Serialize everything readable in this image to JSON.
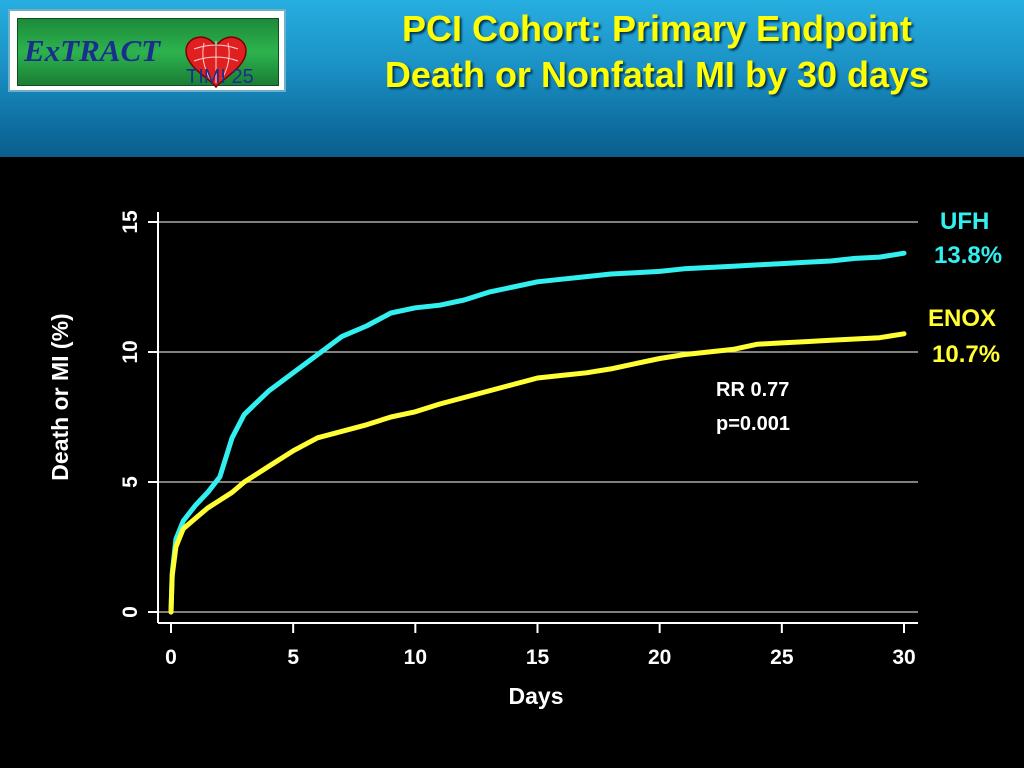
{
  "header": {
    "title_line1": "PCI Cohort: Primary Endpoint",
    "title_line2": "Death or Nonfatal MI by 30 days",
    "logo": {
      "wordmark": "ExTRACT",
      "sub": "TIMI 25",
      "colors": {
        "frame": "#ffffff",
        "panel": "#2db34e",
        "text": "#1a2f8c",
        "heart": "#e02020"
      }
    }
  },
  "colors": {
    "ufh": "#33f0f0",
    "enox": "#ffff33",
    "title": "#ffff00",
    "axis": "#ffffff"
  },
  "chart_data": {
    "type": "line",
    "title": "",
    "xlabel": "Days",
    "ylabel": "Death or MI (%)",
    "xlim": [
      0,
      30
    ],
    "ylim": [
      0,
      15
    ],
    "x_ticks": [
      0,
      5,
      10,
      15,
      20,
      25,
      30
    ],
    "y_ticks": [
      0,
      5,
      10,
      15
    ],
    "grid": "horizontal",
    "series": [
      {
        "name": "UFH",
        "end_label": "13.8%",
        "color": "#33f0f0",
        "x": [
          0,
          0.05,
          0.2,
          0.5,
          1,
          1.5,
          2,
          2.5,
          3,
          4,
          5,
          6,
          7,
          8,
          9,
          10,
          11,
          12,
          13,
          14,
          15,
          16,
          17,
          18,
          19,
          20,
          21,
          22,
          23,
          24,
          25,
          26,
          27,
          28,
          29,
          30
        ],
        "y": [
          0,
          1.5,
          2.8,
          3.5,
          4.1,
          4.6,
          5.2,
          6.7,
          7.6,
          8.5,
          9.2,
          9.9,
          10.6,
          11.0,
          11.5,
          11.7,
          11.8,
          12.0,
          12.3,
          12.5,
          12.7,
          12.8,
          12.9,
          13.0,
          13.05,
          13.1,
          13.2,
          13.25,
          13.3,
          13.35,
          13.4,
          13.45,
          13.5,
          13.6,
          13.65,
          13.8
        ]
      },
      {
        "name": "ENOX",
        "end_label": "10.7%",
        "color": "#ffff33",
        "x": [
          0,
          0.05,
          0.2,
          0.5,
          1,
          1.5,
          2,
          2.5,
          3,
          4,
          5,
          6,
          7,
          8,
          9,
          10,
          11,
          12,
          13,
          14,
          15,
          16,
          17,
          18,
          19,
          20,
          21,
          22,
          23,
          24,
          25,
          26,
          27,
          28,
          29,
          30
        ],
        "y": [
          0,
          1.4,
          2.5,
          3.2,
          3.6,
          4.0,
          4.3,
          4.6,
          5.0,
          5.6,
          6.2,
          6.7,
          6.95,
          7.2,
          7.5,
          7.7,
          8.0,
          8.25,
          8.5,
          8.75,
          9.0,
          9.1,
          9.2,
          9.35,
          9.55,
          9.75,
          9.9,
          10.0,
          10.1,
          10.3,
          10.35,
          10.4,
          10.45,
          10.5,
          10.55,
          10.7
        ]
      }
    ],
    "annotations": [
      "RR 0.77",
      "p=0.001"
    ]
  }
}
